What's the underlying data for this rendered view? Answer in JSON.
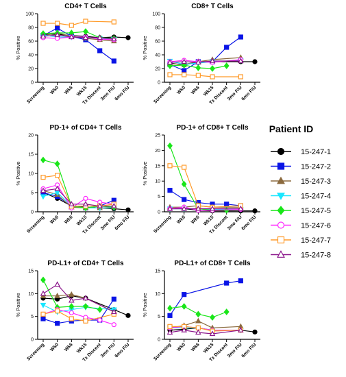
{
  "legend": {
    "title": "Patient ID",
    "entries": [
      "15-247-1",
      "15-247-2",
      "15-247-3",
      "15-247-4",
      "15-247-5",
      "15-247-6",
      "15-247-7",
      "15-247-8"
    ]
  },
  "series_styles": [
    {
      "name": "15-247-1",
      "color": "#000000",
      "marker": "circle",
      "filled": true
    },
    {
      "name": "15-247-2",
      "color": "#0a14e6",
      "marker": "square",
      "filled": true
    },
    {
      "name": "15-247-3",
      "color": "#8b6a3e",
      "marker": "triangle-up",
      "filled": true
    },
    {
      "name": "15-247-4",
      "color": "#19e6ff",
      "marker": "triangle-down",
      "filled": true
    },
    {
      "name": "15-247-5",
      "color": "#19e619",
      "marker": "diamond",
      "filled": true
    },
    {
      "name": "15-247-6",
      "color": "#ff28ff",
      "marker": "circle",
      "filled": false
    },
    {
      "name": "15-247-7",
      "color": "#ff9a28",
      "marker": "square",
      "filled": false
    },
    {
      "name": "15-247-8",
      "color": "#8b168b",
      "marker": "triangle-up",
      "filled": false
    }
  ],
  "chart_data": [
    {
      "type": "line",
      "title": "CD4+ T Cells",
      "ylabel": "% Positive",
      "categories": [
        "Screening",
        "Wk0",
        "Wk6",
        "Wk15",
        "Tx Discont",
        "3mo F/U",
        "6mo F/U"
      ],
      "ylim": [
        0,
        100
      ],
      "yticks": [
        0,
        20,
        40,
        60,
        80,
        100
      ],
      "series": [
        {
          "name": "15-247-1",
          "values": [
            70,
            70,
            68,
            67,
            65,
            66,
            65
          ]
        },
        {
          "name": "15-247-2",
          "values": [
            68,
            79,
            67,
            62,
            46,
            31,
            null
          ]
        },
        {
          "name": "15-247-3",
          "values": [
            68,
            72,
            67,
            64,
            62,
            60,
            null
          ]
        },
        {
          "name": "15-247-4",
          "values": [
            69,
            66,
            66,
            65,
            64,
            63,
            null
          ]
        },
        {
          "name": "15-247-5",
          "values": [
            71,
            72,
            72,
            74,
            65,
            64,
            null
          ]
        },
        {
          "name": "15-247-6",
          "values": [
            65,
            64,
            66,
            66,
            63,
            62,
            null
          ]
        },
        {
          "name": "15-247-7",
          "values": [
            86,
            86,
            83,
            89,
            null,
            88,
            null
          ]
        },
        {
          "name": "15-247-8",
          "values": [
            67,
            69,
            66,
            65,
            65,
            63,
            null
          ]
        }
      ]
    },
    {
      "type": "line",
      "title": "CD8+ T Cells",
      "ylabel": "% Positive",
      "categories": [
        "Screening",
        "Wk0",
        "Wk6",
        "Wk15",
        "Tx Discont",
        "3mo F/U",
        "6mo F/U"
      ],
      "ylim": [
        0,
        100
      ],
      "yticks": [
        0,
        20,
        40,
        60,
        80,
        100
      ],
      "series": [
        {
          "name": "15-247-1",
          "values": [
            28,
            25,
            30,
            30,
            null,
            30,
            30
          ]
        },
        {
          "name": "15-247-2",
          "values": [
            26,
            17,
            30,
            30,
            51,
            66,
            null
          ]
        },
        {
          "name": "15-247-3",
          "values": [
            27,
            26,
            30,
            33,
            null,
            36,
            null
          ]
        },
        {
          "name": "15-247-4",
          "values": [
            31,
            26,
            28,
            30,
            null,
            32,
            null
          ]
        },
        {
          "name": "15-247-5",
          "values": [
            24,
            25,
            21,
            20,
            24,
            null,
            null
          ]
        },
        {
          "name": "15-247-6",
          "values": [
            30,
            32,
            30,
            29,
            null,
            33,
            null
          ]
        },
        {
          "name": "15-247-7",
          "values": [
            11,
            11,
            10,
            8,
            null,
            8,
            null
          ]
        },
        {
          "name": "15-247-8",
          "values": [
            29,
            30,
            29,
            31,
            null,
            31,
            null
          ]
        }
      ]
    },
    {
      "type": "line",
      "title": "PD-1+ of CD4+ T Cells",
      "ylabel": "% Positive",
      "categories": [
        "Screening",
        "Wk0",
        "Wk6",
        "Wk15",
        "Tx Discont",
        "3mo F/U",
        "6mo F/U"
      ],
      "ylim": [
        0,
        20
      ],
      "yticks": [
        0,
        5,
        10,
        15,
        20
      ],
      "series": [
        {
          "name": "15-247-1",
          "values": [
            5,
            3.5,
            1.5,
            1.2,
            1,
            0.8,
            0.5
          ]
        },
        {
          "name": "15-247-2",
          "values": [
            5,
            4,
            1.5,
            1,
            1.5,
            3,
            null
          ]
        },
        {
          "name": "15-247-3",
          "values": [
            5.5,
            4.5,
            1.2,
            1,
            1,
            1.2,
            null
          ]
        },
        {
          "name": "15-247-4",
          "values": [
            4,
            5,
            1.5,
            1,
            1,
            1,
            null
          ]
        },
        {
          "name": "15-247-5",
          "values": [
            13.5,
            12.5,
            1.5,
            1,
            1.5,
            1.2,
            null
          ]
        },
        {
          "name": "15-247-6",
          "values": [
            6,
            7,
            1,
            3.5,
            2.5,
            2,
            null
          ]
        },
        {
          "name": "15-247-7",
          "values": [
            9,
            9.5,
            1.5,
            1.5,
            1.5,
            2,
            null
          ]
        },
        {
          "name": "15-247-8",
          "values": [
            5.5,
            6,
            2,
            2,
            1.5,
            1.5,
            null
          ]
        }
      ]
    },
    {
      "type": "line",
      "title": "PD-1+ of CD8+ T Cells",
      "ylabel": "% Positive",
      "categories": [
        "Screening",
        "Wk0",
        "Wk6",
        "Wk15",
        "Tx Discont",
        "3mo F/U",
        "6mo F/U"
      ],
      "ylim": [
        0,
        25
      ],
      "yticks": [
        0,
        5,
        10,
        15,
        20,
        25
      ],
      "series": [
        {
          "name": "15-247-1",
          "values": [
            1,
            1,
            0.5,
            0.3,
            null,
            0.3,
            0.3
          ]
        },
        {
          "name": "15-247-2",
          "values": [
            7,
            4,
            3,
            2.5,
            2.5,
            2,
            null
          ]
        },
        {
          "name": "15-247-3",
          "values": [
            1.5,
            1.5,
            2,
            1.5,
            null,
            1.5,
            null
          ]
        },
        {
          "name": "15-247-4",
          "values": [
            1,
            1,
            1,
            0.8,
            null,
            0.8,
            null
          ]
        },
        {
          "name": "15-247-5",
          "values": [
            21.5,
            9,
            1,
            0.5,
            0.5,
            null,
            null
          ]
        },
        {
          "name": "15-247-6",
          "values": [
            1,
            1.5,
            0.5,
            0.5,
            null,
            0.8,
            null
          ]
        },
        {
          "name": "15-247-7",
          "values": [
            15,
            14.5,
            2,
            1.5,
            null,
            2,
            null
          ]
        },
        {
          "name": "15-247-8",
          "values": [
            1,
            1,
            1,
            1,
            null,
            1,
            null
          ]
        }
      ]
    },
    {
      "type": "line",
      "title": "PD-L1+ of CD4+ T Cells",
      "ylabel": "% Positive",
      "categories": [
        "Screening",
        "Wk0",
        "Wk6",
        "Wk15",
        "Tx Discont",
        "3mo F/U",
        "6mo F/U"
      ],
      "ylim": [
        0,
        15
      ],
      "yticks": [
        0,
        5,
        10,
        15
      ],
      "series": [
        {
          "name": "15-247-1",
          "values": [
            9,
            8.8,
            9.5,
            9,
            null,
            6.5,
            5.2
          ]
        },
        {
          "name": "15-247-2",
          "values": [
            4.5,
            3.5,
            4,
            4.2,
            4.2,
            8.8,
            null
          ]
        },
        {
          "name": "15-247-3",
          "values": [
            9.5,
            9.5,
            9.8,
            9,
            null,
            6,
            null
          ]
        },
        {
          "name": "15-247-4",
          "values": [
            7.5,
            6,
            6.5,
            7,
            null,
            6.5,
            null
          ]
        },
        {
          "name": "15-247-5",
          "values": [
            13,
            7,
            7.2,
            7.2,
            6.5,
            null,
            null
          ]
        },
        {
          "name": "15-247-6",
          "values": [
            5.5,
            6.5,
            5.8,
            4.8,
            4.2,
            3.2,
            null
          ]
        },
        {
          "name": "15-247-7",
          "values": [
            5.5,
            6.2,
            4.5,
            4,
            null,
            5.5,
            null
          ]
        },
        {
          "name": "15-247-8",
          "values": [
            10,
            12,
            8.5,
            9,
            null,
            6,
            null
          ]
        }
      ]
    },
    {
      "type": "line",
      "title": "PD-L1+ of CD8+ T Cells",
      "ylabel": "% Positive",
      "categories": [
        "Screening",
        "Wk0",
        "Wk6",
        "Wk15",
        "Tx Discont",
        "3mo F/U",
        "6mo F/U"
      ],
      "ylim": [
        0,
        15
      ],
      "yticks": [
        0,
        5,
        10,
        15
      ],
      "series": [
        {
          "name": "15-247-1",
          "values": [
            2,
            2.2,
            2.5,
            2,
            null,
            2,
            1.6
          ]
        },
        {
          "name": "15-247-2",
          "values": [
            5.2,
            9.8,
            null,
            null,
            12.3,
            12.8,
            null
          ]
        },
        {
          "name": "15-247-3",
          "values": [
            2.5,
            3,
            4,
            2.5,
            null,
            2.8,
            null
          ]
        },
        {
          "name": "15-247-4",
          "values": [
            2.5,
            2.5,
            2.5,
            2,
            null,
            2,
            null
          ]
        },
        {
          "name": "15-247-5",
          "values": [
            6.8,
            7.2,
            5.5,
            4.8,
            6,
            null,
            null
          ]
        },
        {
          "name": "15-247-6",
          "values": [
            2.5,
            2.8,
            2.5,
            2,
            null,
            2,
            null
          ]
        },
        {
          "name": "15-247-7",
          "values": [
            2.8,
            2.8,
            2.5,
            1.8,
            null,
            2,
            null
          ]
        },
        {
          "name": "15-247-8",
          "values": [
            1.5,
            2,
            1.5,
            1.2,
            null,
            2,
            null
          ]
        }
      ]
    }
  ]
}
